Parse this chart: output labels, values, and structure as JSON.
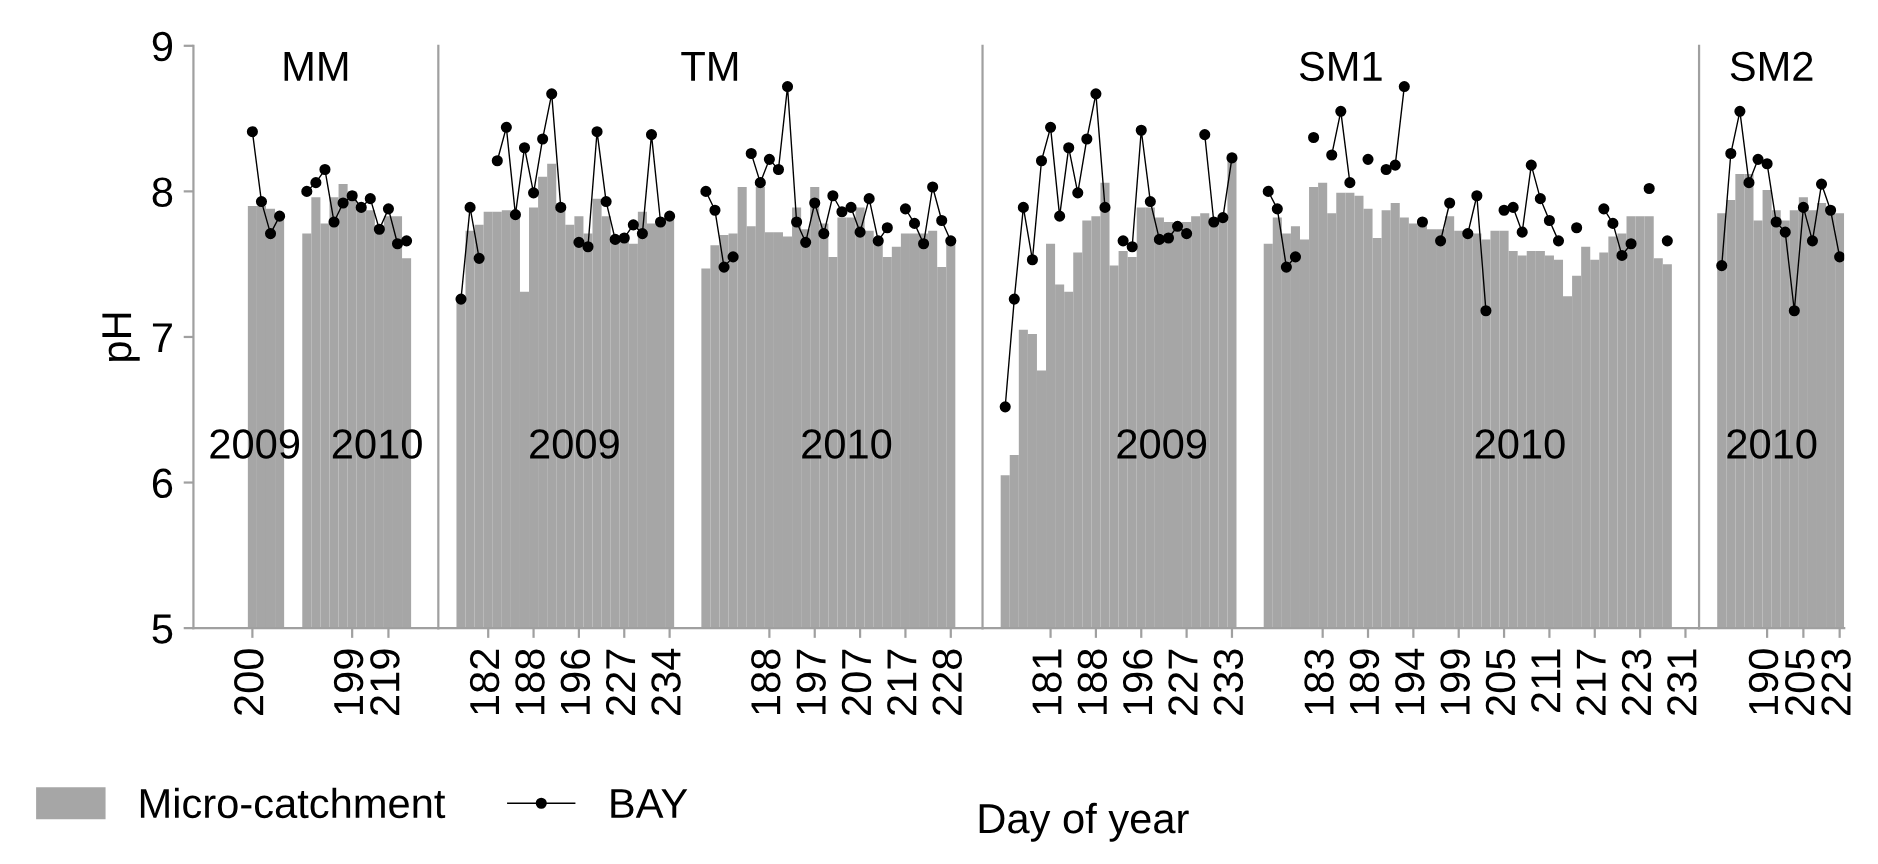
{
  "chart_data": [
    {
      "type": "bar",
      "title": "MM",
      "ylabel": "pH",
      "legend": "bottom",
      "marker": "circle",
      "ylim": [
        5,
        9
      ],
      "yticks": [
        5,
        6,
        7,
        8,
        9
      ],
      "annotations": [
        "2009",
        "2010"
      ],
      "categories": [
        null,
        null,
        null,
        null,
        null,
        null,
        "200",
        null,
        null,
        null,
        null,
        null,
        null,
        null,
        null,
        null,
        null,
        "199",
        null,
        null,
        null,
        "219",
        null,
        null,
        null,
        null,
        null
      ],
      "series": [
        {
          "name": "Micro-catchment",
          "color": "#a6a6a6",
          "values": [
            null,
            null,
            null,
            null,
            null,
            null,
            7.9,
            7.9,
            7.88,
            7.85,
            null,
            null,
            7.71,
            7.96,
            7.78,
            7.96,
            8.05,
            8.0,
            7.92,
            7.87,
            7.73,
            7.83,
            7.83,
            7.54,
            null,
            null,
            null
          ]
        },
        {
          "name": "BAY",
          "type": "line",
          "color": "#000000",
          "values": [
            null,
            null,
            null,
            null,
            null,
            null,
            8.41,
            7.93,
            7.71,
            7.83,
            null,
            null,
            8.0,
            8.06,
            8.15,
            7.79,
            7.92,
            7.97,
            7.89,
            7.95,
            7.74,
            7.88,
            7.64,
            7.66,
            null,
            null,
            null
          ]
        }
      ]
    },
    {
      "type": "bar",
      "title": "TM",
      "tick_labels": "x",
      "marker": "circle",
      "ylim": [
        5,
        9
      ],
      "yticks": [
        5,
        6,
        7,
        8,
        9
      ],
      "annotations": [
        "2009",
        "2010"
      ],
      "categories": [
        null,
        null,
        null,
        null,
        null,
        "182",
        null,
        null,
        null,
        null,
        "188",
        null,
        null,
        null,
        null,
        "196",
        null,
        null,
        null,
        null,
        "227",
        null,
        null,
        null,
        null,
        "234",
        null,
        null,
        null,
        null,
        null,
        null,
        null,
        null,
        null,
        null,
        "188",
        null,
        null,
        null,
        null,
        "197",
        null,
        null,
        null,
        null,
        "207",
        null,
        null,
        null,
        null,
        "217",
        null,
        null,
        null,
        null,
        "228",
        null,
        null,
        null
      ],
      "series": [
        {
          "color": "#a6a6a6",
          "values": [
            null,
            null,
            7.26,
            7.73,
            7.77,
            7.86,
            7.86,
            7.87,
            7.86,
            7.31,
            7.89,
            8.1,
            8.19,
            7.92,
            7.77,
            7.83,
            7.71,
            7.95,
            7.83,
            7.68,
            7.68,
            7.64,
            7.86,
            7.78,
            7.8,
            7.83,
            null,
            null,
            null,
            7.47,
            7.63,
            7.7,
            7.71,
            8.03,
            7.76,
            8.03,
            7.72,
            7.72,
            7.69,
            7.89,
            7.74,
            8.03,
            7.78,
            7.55,
            7.82,
            7.82,
            7.89,
            7.73,
            7.66,
            7.55,
            7.62,
            7.71,
            7.71,
            7.71,
            7.73,
            7.48,
            7.66,
            null,
            null,
            null
          ]
        },
        {
          "type": "line",
          "color": "#000000",
          "values": [
            null,
            null,
            7.26,
            7.89,
            7.54,
            null,
            8.21,
            8.44,
            7.84,
            8.3,
            7.99,
            8.36,
            8.67,
            7.89,
            null,
            7.65,
            7.62,
            8.41,
            7.93,
            7.67,
            7.68,
            7.77,
            7.71,
            8.39,
            7.79,
            7.83,
            null,
            null,
            null,
            8.0,
            7.87,
            7.48,
            7.55,
            null,
            8.26,
            8.06,
            8.22,
            8.15,
            8.72,
            7.79,
            7.65,
            7.92,
            7.71,
            7.97,
            7.86,
            7.89,
            7.72,
            7.95,
            7.66,
            7.75,
            null,
            7.88,
            7.78,
            7.64,
            8.03,
            7.8,
            7.66,
            null,
            null,
            null
          ]
        }
      ]
    },
    {
      "type": "bar",
      "title": "SM1",
      "tick_labels": "x",
      "xlabel": "Day of year",
      "marker": "circle",
      "ylim": [
        5,
        9
      ],
      "yticks": [
        5,
        6,
        7,
        8,
        9
      ],
      "annotations": [
        "2009",
        "2010"
      ],
      "categories": [
        null,
        null,
        null,
        null,
        null,
        null,
        null,
        "181",
        null,
        null,
        null,
        null,
        "188",
        null,
        null,
        null,
        null,
        "196",
        null,
        null,
        null,
        null,
        "227",
        null,
        null,
        null,
        null,
        "233",
        null,
        null,
        null,
        null,
        null,
        null,
        null,
        null,
        null,
        "183",
        null,
        null,
        null,
        null,
        "189",
        null,
        null,
        null,
        null,
        "194",
        null,
        null,
        null,
        null,
        "199",
        null,
        null,
        null,
        null,
        "205",
        null,
        null,
        null,
        null,
        "211",
        null,
        null,
        null,
        null,
        "217",
        null,
        null,
        null,
        null,
        "223",
        null,
        null,
        null,
        null,
        "231",
        null
      ],
      "series": [
        {
          "color": "#a6a6a6",
          "values": [
            null,
            null,
            6.05,
            6.19,
            7.05,
            7.02,
            6.77,
            7.64,
            7.36,
            7.31,
            7.58,
            7.8,
            7.83,
            8.06,
            7.49,
            7.59,
            7.55,
            7.89,
            7.89,
            7.82,
            7.79,
            7.76,
            7.79,
            7.83,
            7.85,
            7.82,
            7.83,
            8.26,
            null,
            null,
            null,
            7.64,
            7.82,
            7.71,
            7.76,
            7.67,
            8.03,
            8.06,
            7.85,
            7.99,
            7.99,
            7.97,
            7.88,
            7.68,
            7.87,
            7.92,
            7.82,
            7.78,
            7.78,
            7.74,
            7.74,
            7.83,
            7.73,
            7.73,
            7.71,
            7.67,
            7.73,
            7.73,
            7.59,
            7.56,
            7.59,
            7.59,
            7.56,
            7.53,
            7.28,
            7.42,
            7.62,
            7.53,
            7.58,
            7.69,
            7.71,
            7.83,
            7.83,
            7.83,
            7.54,
            7.5,
            null,
            null,
            null
          ]
        },
        {
          "type": "line",
          "color": "#000000",
          "values": [
            null,
            null,
            6.52,
            7.26,
            7.89,
            7.53,
            8.21,
            8.44,
            7.83,
            8.3,
            7.99,
            8.36,
            8.67,
            7.89,
            null,
            7.66,
            7.62,
            8.42,
            7.93,
            7.67,
            7.68,
            7.76,
            7.71,
            null,
            8.39,
            7.79,
            7.82,
            8.23,
            null,
            null,
            null,
            8.0,
            7.88,
            7.48,
            7.55,
            null,
            8.37,
            null,
            8.25,
            8.55,
            8.06,
            null,
            8.22,
            null,
            8.15,
            8.18,
            8.72,
            null,
            7.79,
            null,
            7.66,
            7.92,
            null,
            7.71,
            7.97,
            7.18,
            null,
            7.87,
            7.89,
            7.72,
            8.18,
            7.95,
            7.8,
            7.66,
            null,
            7.75,
            null,
            null,
            7.88,
            7.78,
            7.56,
            7.64,
            null,
            8.02,
            null,
            7.66,
            null,
            null,
            null
          ]
        }
      ]
    },
    {
      "type": "bar",
      "title": "SM2",
      "tick_labels": "x",
      "marker": "circle",
      "ylim": [
        5,
        9
      ],
      "yticks": [
        5,
        6,
        7,
        8,
        9
      ],
      "annotations": [
        "2010"
      ],
      "categories": [
        null,
        null,
        null,
        null,
        null,
        null,
        null,
        "190",
        null,
        null,
        null,
        "205",
        null,
        null,
        null,
        "223"
      ],
      "series": [
        {
          "color": "#a6a6a6",
          "values": [
            null,
            null,
            7.85,
            7.94,
            8.12,
            8.12,
            7.8,
            8.01,
            7.87,
            7.8,
            7.87,
            7.96,
            7.87,
            7.92,
            7.89,
            7.85
          ]
        },
        {
          "type": "line",
          "color": "#000000",
          "values": [
            null,
            null,
            7.49,
            8.26,
            8.55,
            8.06,
            8.22,
            8.19,
            7.79,
            7.72,
            7.18,
            7.89,
            7.66,
            8.05,
            7.87,
            7.55
          ]
        }
      ]
    }
  ]
}
